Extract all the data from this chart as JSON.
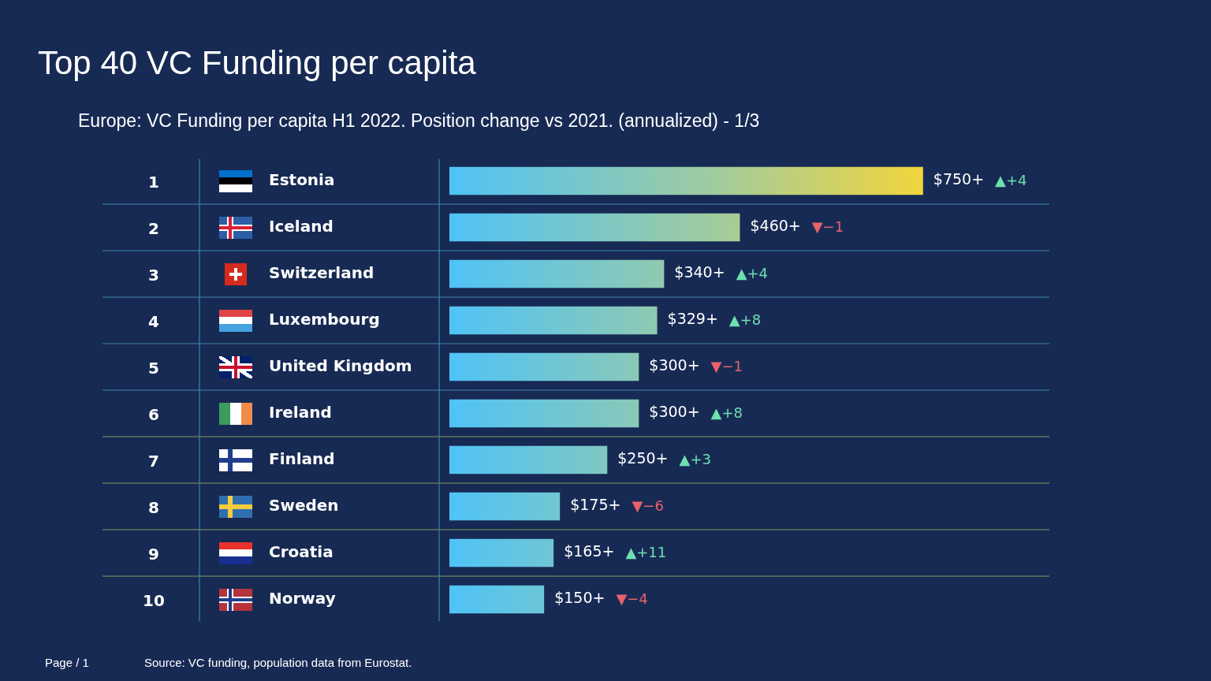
{
  "chart_data": {
    "type": "bar",
    "orientation": "horizontal",
    "title": "Top 40 VC Funding per capita",
    "subtitle": "Europe: VC Funding per capita H1 2022. Position change vs 2021. (annualized) - 1/3",
    "categories": [
      "Estonia",
      "Iceland",
      "Switzerland",
      "Luxembourg",
      "United Kingdom",
      "Ireland",
      "Finland",
      "Sweden",
      "Croatia",
      "Norway"
    ],
    "values": [
      750,
      460,
      340,
      329,
      300,
      300,
      250,
      175,
      165,
      150
    ],
    "value_labels": [
      "$750+",
      "$460+",
      "$340+",
      "$329+",
      "$300+",
      "$300+",
      "$250+",
      "$175+",
      "$165+",
      "$150+"
    ],
    "color": "#4fc3f7",
    "xlim": [
      0,
      950
    ],
    "tick_labels": false,
    "grid": "y",
    "legend": false,
    "annotations": [
      "1",
      "2",
      "3",
      "4",
      "5",
      "6",
      "7",
      "8",
      "9",
      "10",
      "▲+4",
      "▼−1",
      "▲+4",
      "▲+8",
      "▼−1",
      "▲+8",
      "▲+3",
      "▼−6",
      "▲+11",
      "▼−4",
      "Page / 1",
      "Source: VC funding, population data from Eurostat."
    ]
  }
}
